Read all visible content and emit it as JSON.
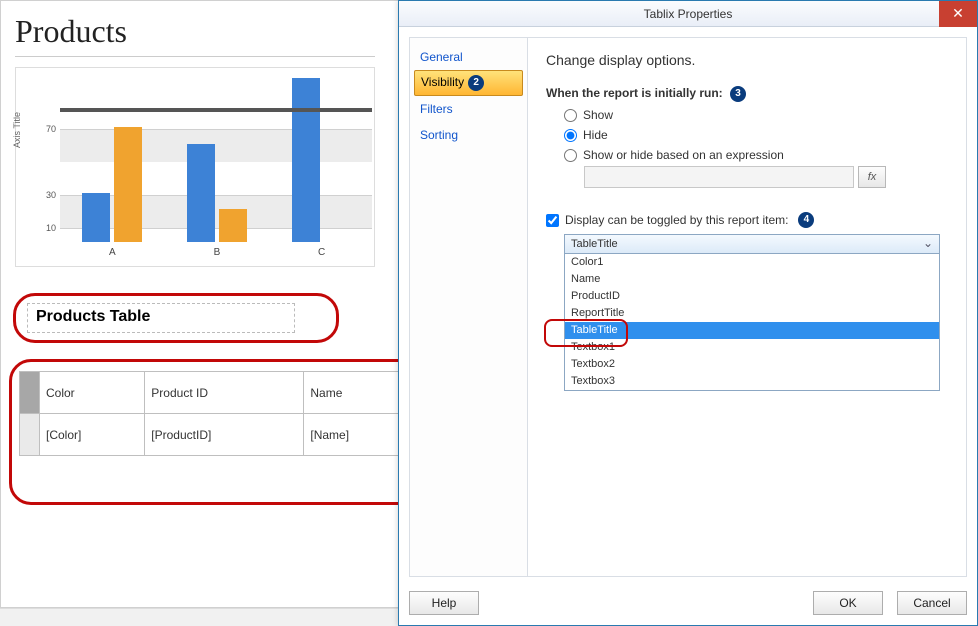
{
  "report": {
    "title": "Products",
    "chart": {
      "type": "bar",
      "axis_title": "Axis Title",
      "y_ticks": [
        10,
        30,
        70
      ],
      "y_max": 100,
      "band_rows": [
        [
          10,
          30
        ],
        [
          50,
          70
        ]
      ],
      "categories": [
        "A",
        "B",
        "C"
      ],
      "series": [
        {
          "color": "#3d82d6",
          "values": [
            30,
            60,
            100
          ]
        },
        {
          "color": "#f0a32f",
          "values": [
            70,
            20,
            0
          ]
        }
      ],
      "trend_color": "#555555",
      "trend_y": 82,
      "background": "#ffffff"
    },
    "table_title": "Products Table",
    "table": {
      "columns": [
        "Color",
        "Product ID",
        "Name"
      ],
      "data_row": [
        "[Color]",
        "[ProductID]",
        "[Name]"
      ]
    }
  },
  "dialog": {
    "title": "Tablix Properties",
    "close_glyph": "✕",
    "nav": {
      "items": [
        "General",
        "Visibility",
        "Filters",
        "Sorting"
      ],
      "selected_index": 1,
      "badge_on_selected": "2"
    },
    "content": {
      "heading": "Change display options.",
      "section1_label": "When the report is initially run:",
      "section1_badge": "3",
      "radios": {
        "show": "Show",
        "hide": "Hide",
        "expr": "Show or hide based on an expression",
        "selected": "hide"
      },
      "fx_label": "fx",
      "toggle_label": "Display can be toggled by this report item:",
      "toggle_badge": "4",
      "toggle_checked": true,
      "combo_value": "TableTitle",
      "dropdown_options": [
        "Color1",
        "Name",
        "ProductID",
        "ReportTitle",
        "TableTitle",
        "Textbox1",
        "Textbox2",
        "Textbox3"
      ],
      "dropdown_selected_index": 4
    },
    "buttons": {
      "help": "Help",
      "ok": "OK",
      "cancel": "Cancel"
    }
  },
  "colors": {
    "highlight_border": "#c20808",
    "badge_bg": "#0a3c7d"
  }
}
